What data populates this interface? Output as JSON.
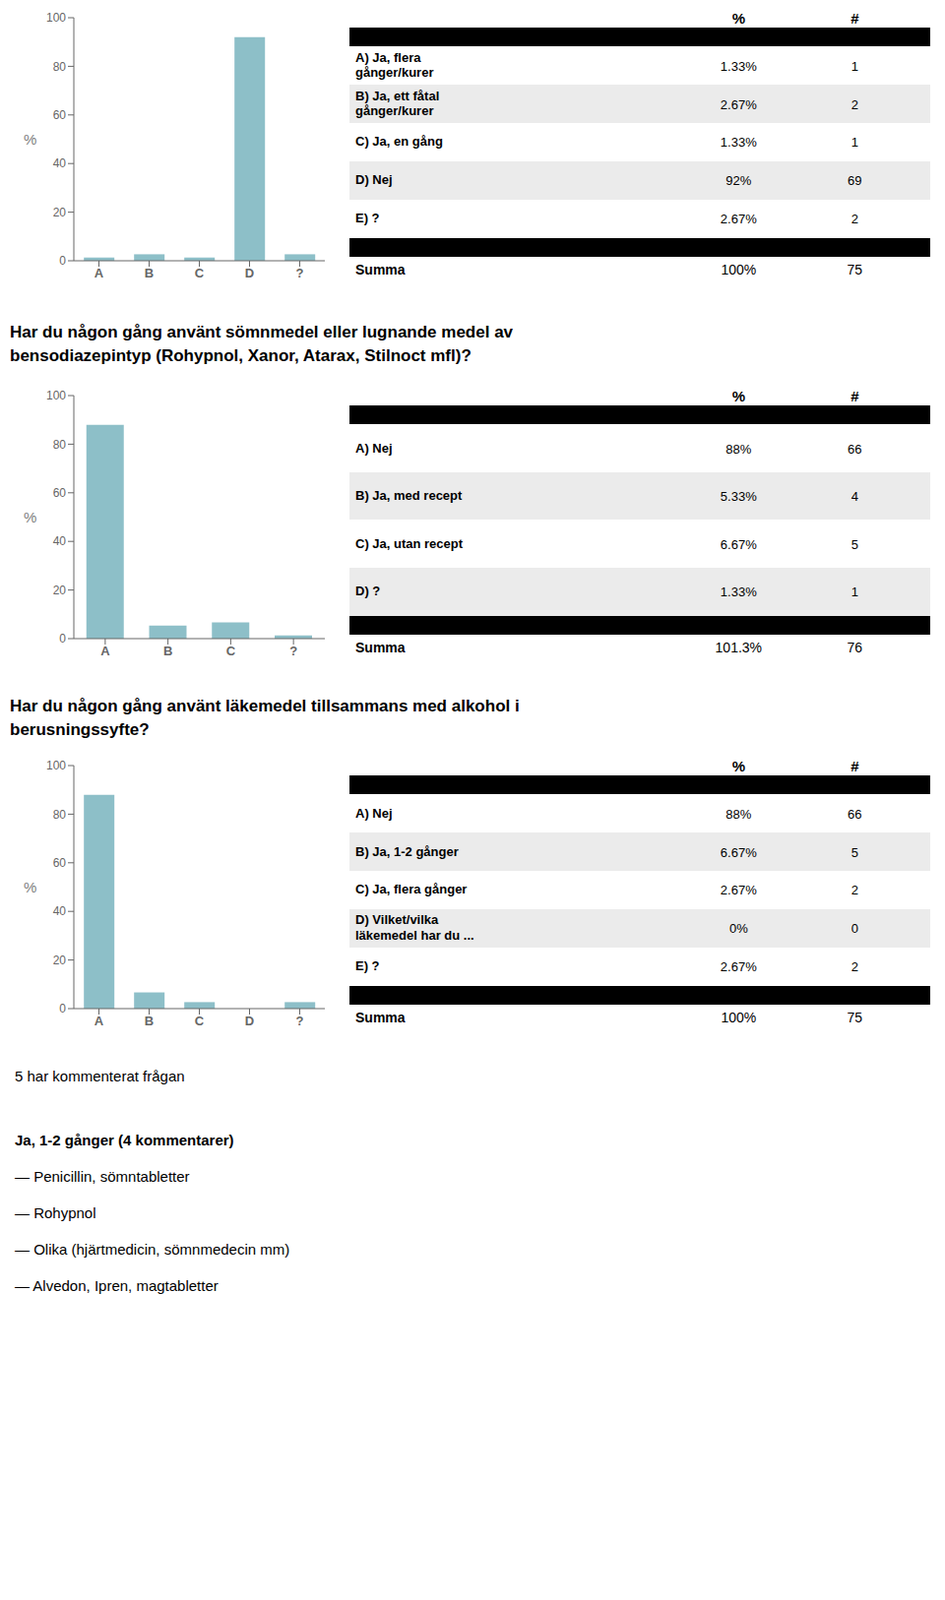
{
  "chart_data": [
    {
      "type": "bar",
      "categories": [
        "A",
        "B",
        "C",
        "D",
        "?"
      ],
      "values": [
        1.33,
        2.67,
        1.33,
        92,
        2.67
      ],
      "color": "#8dbfc8",
      "ylim": [
        0,
        100
      ],
      "yticks": [
        0,
        20,
        40,
        60,
        80,
        100
      ],
      "ylabel": "%",
      "table": {
        "header": [
          "%",
          "#"
        ],
        "rows": [
          [
            "A) Ja, flera\ngånger/kurer",
            "1.33%",
            "1"
          ],
          [
            "B) Ja, ett fåtal\ngånger/kurer",
            "2.67%",
            "2"
          ],
          [
            "C) Ja, en gång",
            "1.33%",
            "1"
          ],
          [
            "D) Nej",
            "92%",
            "69"
          ],
          [
            "E) ?",
            "2.67%",
            "2"
          ]
        ],
        "summa": [
          "Summa",
          "100%",
          "75"
        ]
      }
    },
    {
      "type": "bar",
      "title": "Har du någon gång använt sömnmedel eller lugnande medel av\nbensodiazepintyp (Rohypnol, Xanor, Atarax, Stilnoct mfl)?",
      "categories": [
        "A",
        "B",
        "C",
        "?"
      ],
      "values": [
        88,
        5.33,
        6.67,
        1.33
      ],
      "color": "#8dbfc8",
      "ylim": [
        0,
        100
      ],
      "yticks": [
        0,
        20,
        40,
        60,
        80,
        100
      ],
      "ylabel": "%",
      "table": {
        "header": [
          "%",
          "#"
        ],
        "rows": [
          [
            "A) Nej",
            "88%",
            "66"
          ],
          [
            "B) Ja, med recept",
            "5.33%",
            "4"
          ],
          [
            "C) Ja, utan recept",
            "6.67%",
            "5"
          ],
          [
            "D) ?",
            "1.33%",
            "1"
          ]
        ],
        "summa": [
          "Summa",
          "101.3%",
          "76"
        ]
      }
    },
    {
      "type": "bar",
      "title": "Har du någon gång använt läkemedel tillsammans med alkohol i\nberusningssyfte?",
      "categories": [
        "A",
        "B",
        "C",
        "D",
        "?"
      ],
      "values": [
        88,
        6.67,
        2.67,
        0,
        2.67
      ],
      "color": "#8dbfc8",
      "ylim": [
        0,
        100
      ],
      "yticks": [
        0,
        20,
        40,
        60,
        80,
        100
      ],
      "ylabel": "%",
      "table": {
        "header": [
          "%",
          "#"
        ],
        "rows": [
          [
            "A) Nej",
            "88%",
            "66"
          ],
          [
            "B) Ja, 1-2 gånger",
            "6.67%",
            "5"
          ],
          [
            "C) Ja, flera gånger",
            "2.67%",
            "2"
          ],
          [
            "D) Vilket/vilka\nläkemedel har du ...",
            "0%",
            "0"
          ],
          [
            "E) ?",
            "2.67%",
            "2"
          ]
        ],
        "summa": [
          "Summa",
          "100%",
          "75"
        ]
      },
      "annotations": [
        {
          "text": "5 har kommenterat frågan",
          "bold": false
        },
        {
          "text": "Ja, 1-2 gånger (4 kommentarer)",
          "bold": true
        },
        {
          "text": "— Penicillin, sömntabletter",
          "bold": false
        },
        {
          "text": "— Rohypnol",
          "bold": false
        },
        {
          "text": "— Olika (hjärtmedicin, sömnmedecin mm)",
          "bold": false
        },
        {
          "text": "— Alvedon, Ipren, magtabletter",
          "bold": false
        }
      ]
    }
  ]
}
